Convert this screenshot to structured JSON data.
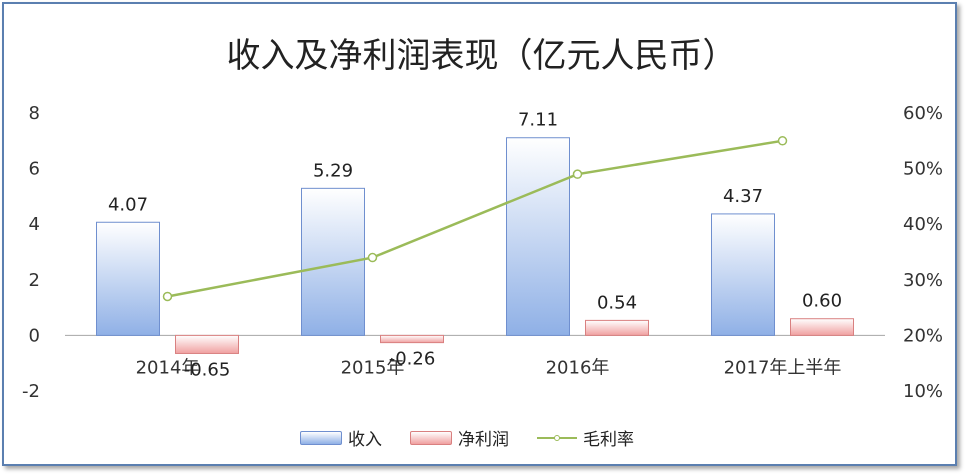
{
  "chart_data": {
    "type": "bar",
    "title": "收入及净利润表现（亿元人民币）",
    "categories": [
      "2014年",
      "2015年",
      "2016年",
      "2017年上半年"
    ],
    "series": [
      {
        "name": "收入",
        "kind": "bar",
        "axis": "left",
        "values": [
          4.07,
          5.29,
          7.11,
          4.37
        ],
        "labels": [
          "4.07",
          "5.29",
          "7.11",
          "4.37"
        ],
        "color": "#6f8fcf"
      },
      {
        "name": "净利润",
        "kind": "bar",
        "axis": "left",
        "values": [
          -0.65,
          -0.26,
          0.54,
          0.6
        ],
        "labels": [
          "-0.65",
          "-0.26",
          "0.54",
          "0.60"
        ],
        "color": "#d98080"
      },
      {
        "name": "毛利率",
        "kind": "line",
        "axis": "right",
        "values": [
          0.27,
          0.34,
          0.49,
          0.55
        ],
        "color": "#9bbb59"
      }
    ],
    "y_left": {
      "ylim": [
        -2,
        8
      ],
      "ticks": [
        "-2",
        "0",
        "2",
        "4",
        "6",
        "8"
      ]
    },
    "y_right": {
      "ylim": [
        0.1,
        0.6
      ],
      "ticks": [
        "10%",
        "20%",
        "30%",
        "40%",
        "50%",
        "60%"
      ]
    },
    "legend_position": "bottom",
    "grid": false
  }
}
